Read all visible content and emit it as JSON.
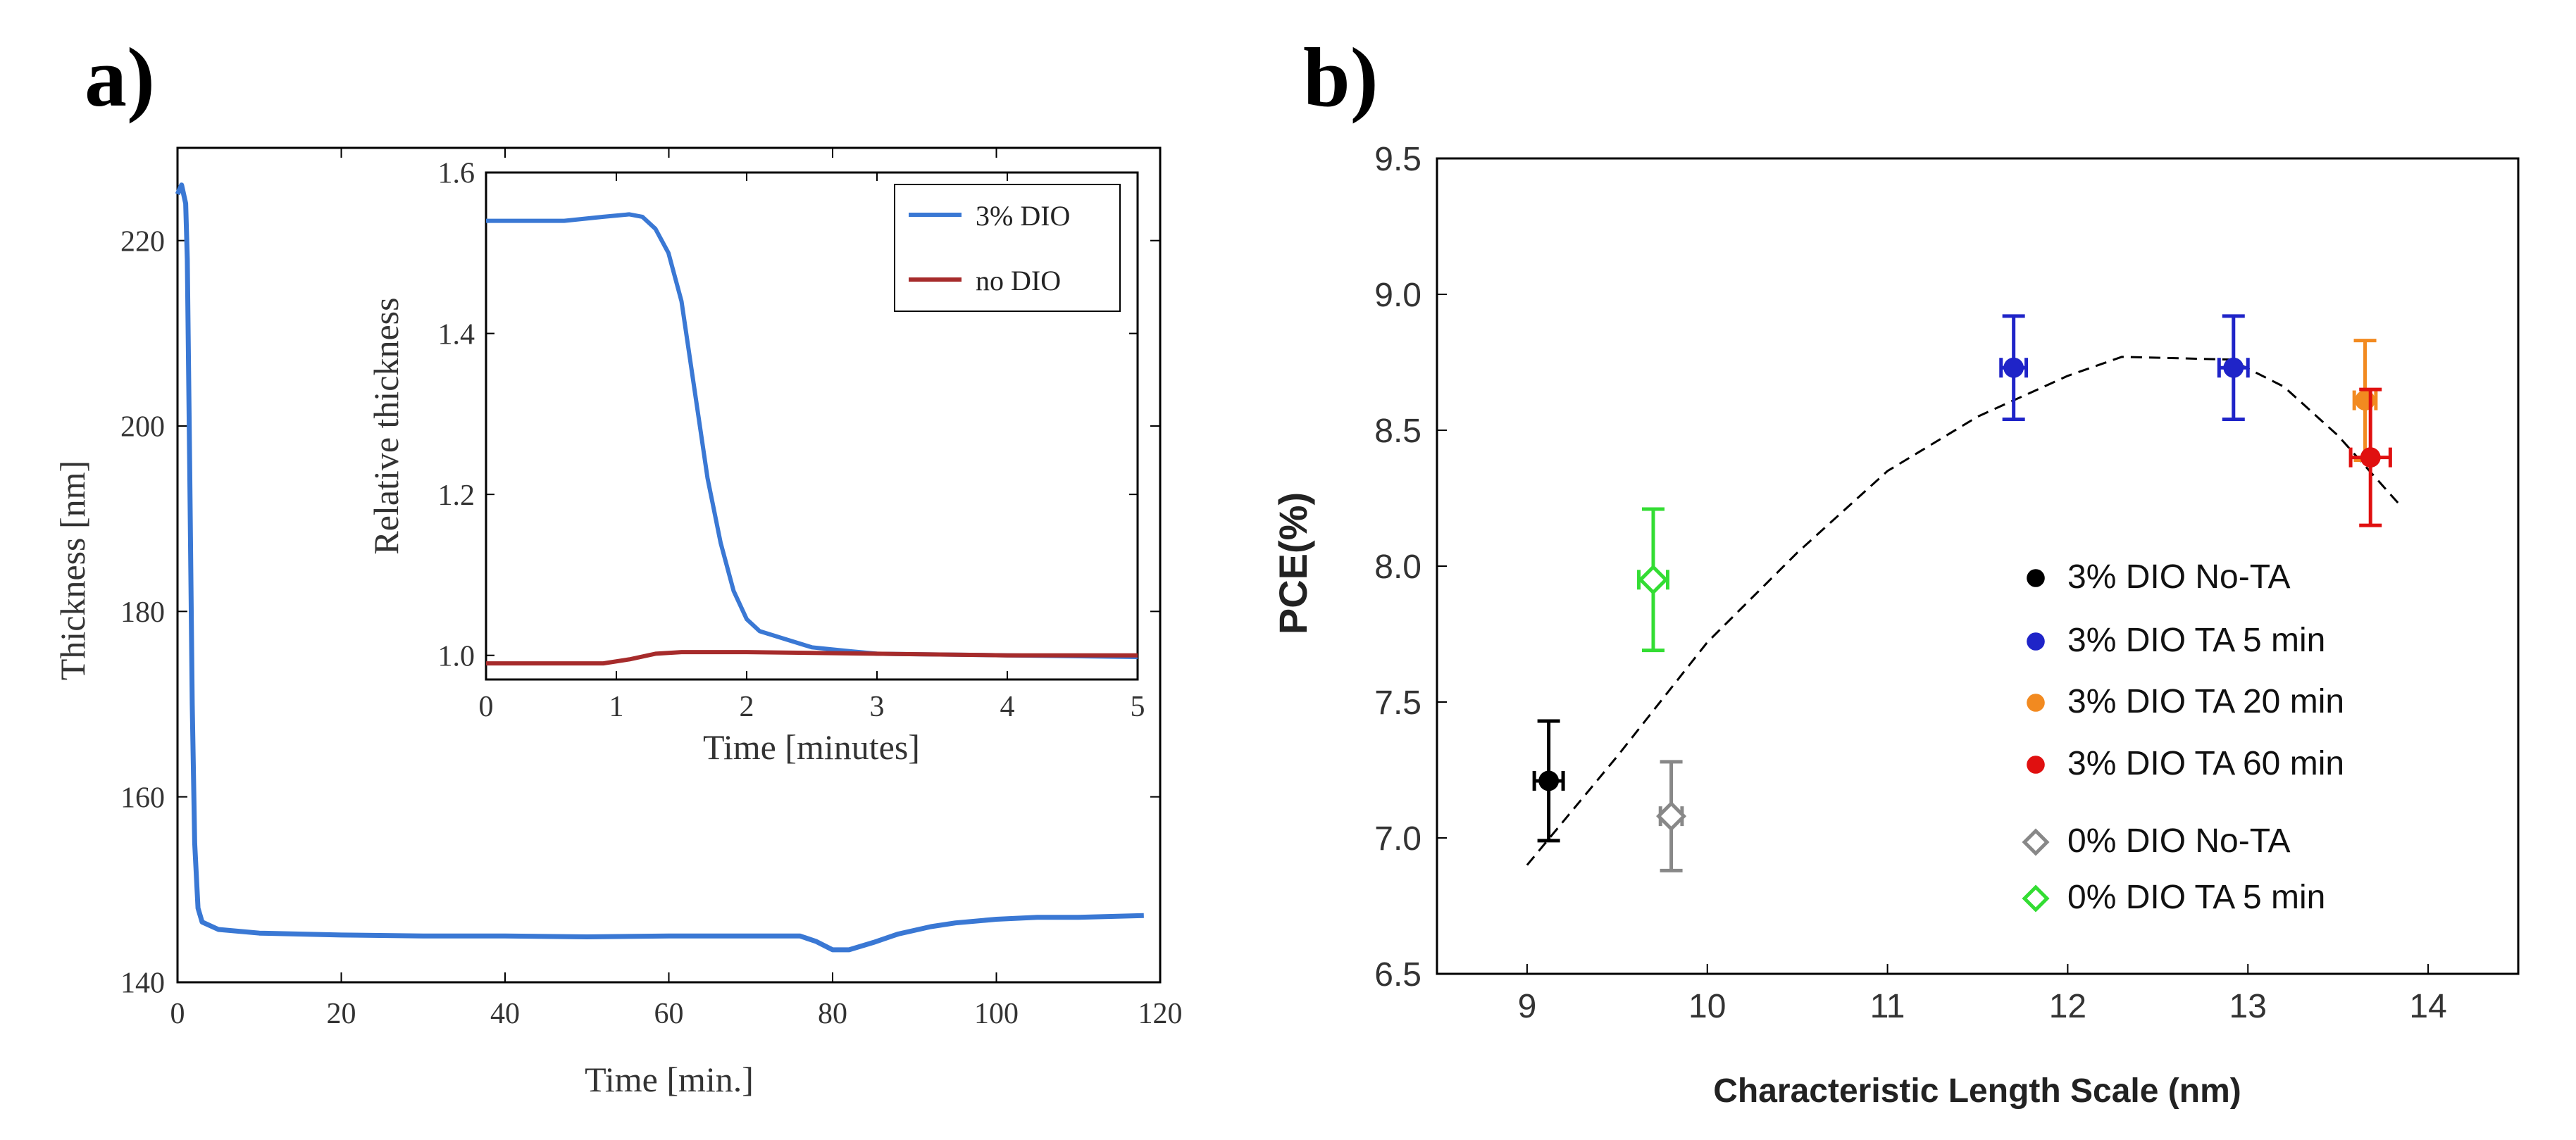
{
  "panels": {
    "a_label": "a)",
    "b_label": "b)"
  },
  "chart_data": [
    {
      "type": "line",
      "panel": "a",
      "xlabel": "Time [min.]",
      "ylabel": "Thickness [nm]",
      "xlim": [
        0,
        120
      ],
      "ylim": [
        140,
        230
      ],
      "x_ticks": [
        0,
        20,
        40,
        60,
        80,
        100,
        120
      ],
      "y_ticks": [
        140,
        160,
        180,
        200,
        220
      ],
      "series": [
        {
          "color": "#3a78d4",
          "points": [
            [
              0.0,
              225
            ],
            [
              0.5,
              226
            ],
            [
              1.0,
              224
            ],
            [
              1.2,
              218
            ],
            [
              1.5,
              195
            ],
            [
              1.8,
              170
            ],
            [
              2.1,
              155
            ],
            [
              2.5,
              148
            ],
            [
              3.0,
              146.5
            ],
            [
              5,
              145.7
            ],
            [
              10,
              145.3
            ],
            [
              20,
              145.1
            ],
            [
              30,
              145.0
            ],
            [
              40,
              145.0
            ],
            [
              50,
              144.9
            ],
            [
              60,
              145.0
            ],
            [
              70,
              145.0
            ],
            [
              76,
              145.0
            ],
            [
              78,
              144.4
            ],
            [
              80,
              143.5
            ],
            [
              82,
              143.5
            ],
            [
              85,
              144.3
            ],
            [
              88,
              145.2
            ],
            [
              92,
              146.0
            ],
            [
              95,
              146.4
            ],
            [
              100,
              146.8
            ],
            [
              105,
              147.0
            ],
            [
              110,
              147.0
            ],
            [
              118,
              147.2
            ]
          ]
        }
      ],
      "inset": {
        "type": "line",
        "xlabel": "Time [minutes]",
        "ylabel": "Relative thickness",
        "xlim": [
          0,
          5
        ],
        "ylim": [
          0.97,
          1.6
        ],
        "x_ticks": [
          0,
          1,
          2,
          3,
          4,
          5
        ],
        "y_ticks": [
          1.0,
          1.2,
          1.4,
          1.6
        ],
        "legend_position": "top-right",
        "series": [
          {
            "name": "3% DIO",
            "color": "#3a78d4",
            "points": [
              [
                0,
                1.54
              ],
              [
                0.3,
                1.54
              ],
              [
                0.6,
                1.54
              ],
              [
                0.9,
                1.545
              ],
              [
                1.1,
                1.548
              ],
              [
                1.2,
                1.545
              ],
              [
                1.3,
                1.53
              ],
              [
                1.4,
                1.5
              ],
              [
                1.5,
                1.44
              ],
              [
                1.6,
                1.33
              ],
              [
                1.7,
                1.22
              ],
              [
                1.8,
                1.14
              ],
              [
                1.9,
                1.08
              ],
              [
                2.0,
                1.045
              ],
              [
                2.1,
                1.03
              ],
              [
                2.3,
                1.02
              ],
              [
                2.5,
                1.01
              ],
              [
                2.8,
                1.005
              ],
              [
                3.0,
                1.002
              ],
              [
                4.0,
                1.0
              ],
              [
                5.0,
                0.998
              ]
            ]
          },
          {
            "name": "no DIO",
            "color": "#a62b2b",
            "points": [
              [
                0,
                0.99
              ],
              [
                0.5,
                0.99
              ],
              [
                0.9,
                0.99
              ],
              [
                1.1,
                0.995
              ],
              [
                1.3,
                1.002
              ],
              [
                1.5,
                1.004
              ],
              [
                2.0,
                1.004
              ],
              [
                3.0,
                1.002
              ],
              [
                4.0,
                1.0
              ],
              [
                5.0,
                1.0
              ]
            ]
          }
        ]
      }
    },
    {
      "type": "scatter",
      "panel": "b",
      "xlabel": "Characteristic Length Scale (nm)",
      "ylabel": "PCE(%)",
      "xlim": [
        8.5,
        14.5
      ],
      "ylim": [
        6.5,
        9.5
      ],
      "x_ticks": [
        9,
        10,
        11,
        12,
        13,
        14
      ],
      "y_ticks": [
        6.5,
        7.0,
        7.5,
        8.0,
        8.5,
        9.0,
        9.5
      ],
      "legend_position": "bottom-right",
      "series": [
        {
          "name": "3% DIO No-TA",
          "color": "#000000",
          "marker": "filled-circle",
          "points": [
            {
              "x": 9.12,
              "y": 7.21,
              "xerr": 0.08,
              "yerr": 0.22
            }
          ]
        },
        {
          "name": "3% DIO TA 5 min",
          "color": "#1f24c8",
          "marker": "filled-circle",
          "points": [
            {
              "x": 11.7,
              "y": 8.73,
              "xerr": 0.07,
              "yerr": 0.19
            },
            {
              "x": 12.92,
              "y": 8.73,
              "xerr": 0.08,
              "yerr": 0.19
            }
          ]
        },
        {
          "name": "3% DIO TA 20 min",
          "color": "#f28a20",
          "marker": "filled-circle",
          "points": [
            {
              "x": 13.65,
              "y": 8.61,
              "xerr": 0.06,
              "yerr": 0.22
            }
          ]
        },
        {
          "name": "3% DIO TA 60 min",
          "color": "#e01010",
          "marker": "filled-circle",
          "points": [
            {
              "x": 13.68,
              "y": 8.4,
              "xerr": 0.11,
              "yerr": 0.25
            }
          ]
        },
        {
          "name": "0% DIO No-TA",
          "color": "#888888",
          "marker": "open-diamond",
          "points": [
            {
              "x": 9.8,
              "y": 7.08,
              "xerr": 0.06,
              "yerr": 0.2
            }
          ]
        },
        {
          "name": "0% DIO TA 5 min",
          "color": "#33dd33",
          "marker": "open-diamond",
          "points": [
            {
              "x": 9.7,
              "y": 7.95,
              "xerr": 0.08,
              "yerr": 0.26
            }
          ]
        }
      ],
      "trend_line": {
        "style": "dashed",
        "color": "#000000",
        "points": [
          [
            9.0,
            6.9
          ],
          [
            9.5,
            7.3
          ],
          [
            10.0,
            7.72
          ],
          [
            10.5,
            8.05
          ],
          [
            11.0,
            8.35
          ],
          [
            11.5,
            8.55
          ],
          [
            12.0,
            8.7
          ],
          [
            12.3,
            8.77
          ],
          [
            12.9,
            8.76
          ],
          [
            13.2,
            8.66
          ],
          [
            13.5,
            8.48
          ],
          [
            13.85,
            8.22
          ]
        ]
      }
    }
  ]
}
